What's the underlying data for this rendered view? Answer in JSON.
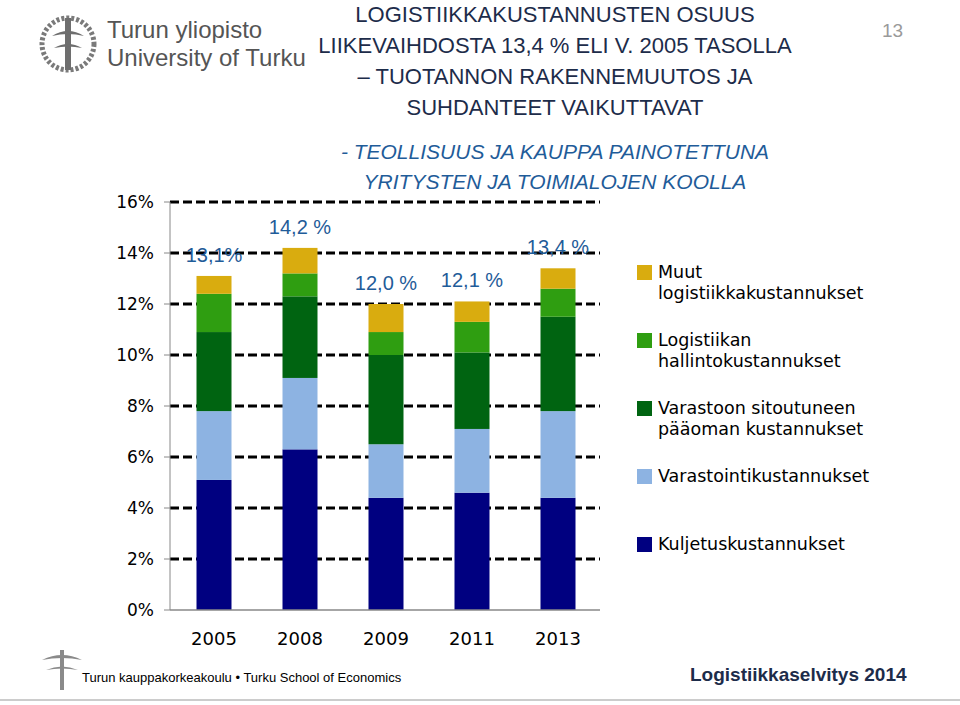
{
  "header": {
    "logo_lines": [
      "Turun yliopisto",
      "University of Turku"
    ],
    "page_number": "13"
  },
  "footer": {
    "school": "Turun kauppakorkeakoulu • Turku School of Economics",
    "report": "Logistiikkaselvitys 2014"
  },
  "chart_data": {
    "type": "bar",
    "stacked": true,
    "title": [
      "LOGISTIIKKAKUSTANNUSTEN OSUUS",
      "LIIKEVAIHDOSTA 13,4 % ELI V. 2005 TASOLLA",
      "– TUOTANNON RAKENNEMUUTOS JA",
      "SUHDANTEET VAIKUTTAVAT"
    ],
    "subtitle": [
      "- TEOLLISUUS JA KAUPPA PAINOTETTUNA",
      "YRITYSTEN JA TOIMIALOJEN KOOLLA"
    ],
    "categories": [
      "2005",
      "2008",
      "2009",
      "2011",
      "2013"
    ],
    "series": [
      {
        "name": "Kuljetuskustannukset",
        "color": "#000080",
        "values": [
          5.1,
          6.3,
          4.4,
          4.6,
          4.4
        ]
      },
      {
        "name": "Varastointikustannukset",
        "color": "#8db3e2",
        "values": [
          2.7,
          2.8,
          2.1,
          2.5,
          3.4
        ]
      },
      {
        "name": "Varastoon sitoutuneen pääoman kustannukset",
        "color": "#006411",
        "values": [
          3.1,
          3.2,
          3.5,
          3.0,
          3.7
        ]
      },
      {
        "name": "Logistiikan hallintokustannukset",
        "color": "#2f9e11",
        "values": [
          1.5,
          0.9,
          0.9,
          1.2,
          1.1
        ]
      },
      {
        "name": "Muut logistiikkakustannukset",
        "color": "#d9ac0f",
        "values": [
          0.7,
          1.0,
          1.1,
          0.8,
          0.8
        ]
      }
    ],
    "totals": [
      13.1,
      14.2,
      12.0,
      12.1,
      13.4
    ],
    "total_labels": [
      "13,1%",
      "14,2 %",
      "12,0 %",
      "12,1 %",
      "13,4 %"
    ],
    "ylim": [
      0,
      16
    ],
    "yticks": [
      {
        "value": 0,
        "label": "0%"
      },
      {
        "value": 2,
        "label": "2%"
      },
      {
        "value": 4,
        "label": "4%"
      },
      {
        "value": 6,
        "label": "6%"
      },
      {
        "value": 8,
        "label": "8%"
      },
      {
        "value": 10,
        "label": "10%"
      },
      {
        "value": 12,
        "label": "12%"
      },
      {
        "value": 14,
        "label": "14%"
      },
      {
        "value": 16,
        "label": "16%"
      }
    ],
    "grid": true,
    "legend": "right"
  }
}
